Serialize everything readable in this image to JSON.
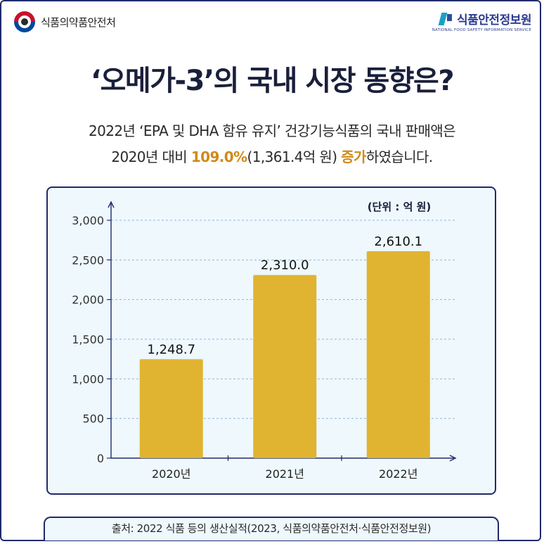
{
  "header": {
    "org_left": "식품의약품안전처",
    "org_right": "식품안전정보원",
    "org_right_sub": "NATIONAL FOOD SAFETY INFORMATION SERVICE"
  },
  "title": "‘오메가-3’의 국내 시장 동향은?",
  "subtitle": {
    "line1": "2022년 ‘EPA 및 DHA 함유 유지’ 건강기능식품의 국내 판매액은",
    "line2_pre": "2020년 대비 ",
    "line2_pct": "109.0%",
    "line2_mid": "(1,361.4억 원) ",
    "line2_inc": "증가",
    "line2_post": "하였습니다."
  },
  "chart_data": {
    "type": "bar",
    "categories": [
      "2020년",
      "2021년",
      "2022년"
    ],
    "values": [
      1248.7,
      2310.0,
      2610.1
    ],
    "value_labels": [
      "1,248.7",
      "2,310.0",
      "2,610.1"
    ],
    "unit_label": "(단위 : 억 원)",
    "ylim": [
      0,
      3000
    ],
    "yticks": [
      0,
      500,
      1000,
      1500,
      2000,
      2500,
      3000
    ],
    "ytick_labels": [
      "0",
      "500",
      "1,000",
      "1,500",
      "2,000",
      "2,500",
      "3,000"
    ],
    "grid": true,
    "bar_color": "#e0b431",
    "grid_color": "#9bb3d6"
  },
  "source": "출처: 2022 식품 등의 생산실적(2023, 식품의약품안전처·식품안전정보원)"
}
